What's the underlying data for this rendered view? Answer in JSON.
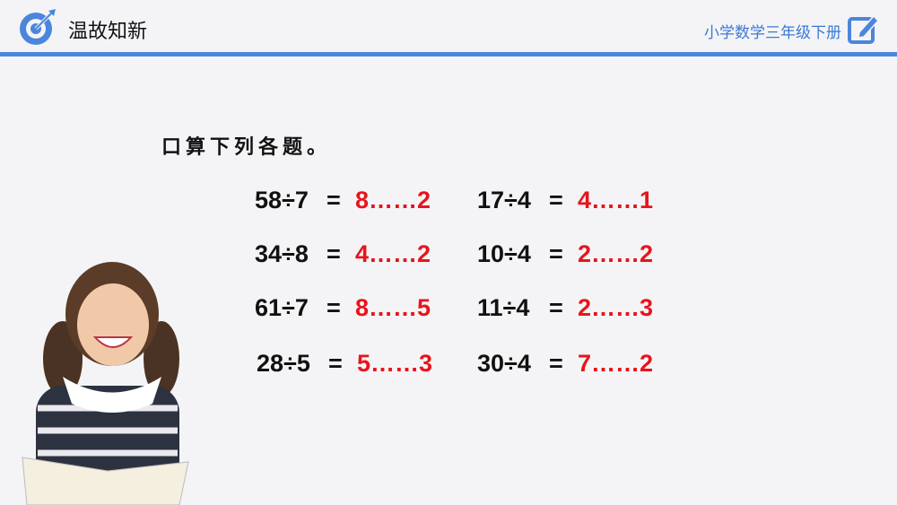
{
  "header": {
    "title": "温故知新",
    "subject": "小学数学三年级下册",
    "logo_icon": "target-icon",
    "edit_icon": "edit-icon",
    "accent": "#4a86dc"
  },
  "instruction": "口算下列各题。",
  "problems": [
    {
      "expr": "58÷7",
      "eq": "=",
      "answer": "8……2"
    },
    {
      "expr": "34÷8",
      "eq": "=",
      "answer": "4……2"
    },
    {
      "expr": "61÷7",
      "eq": "=",
      "answer": "8……5"
    },
    {
      "expr": "28÷5",
      "eq": "=",
      "answer": "5……3"
    },
    {
      "expr": "17÷4",
      "eq": "=",
      "answer": "4……1"
    },
    {
      "expr": "10÷4",
      "eq": "=",
      "answer": "2……2"
    },
    {
      "expr": "11÷4",
      "eq": "=",
      "answer": "2……3"
    },
    {
      "expr": "30÷4",
      "eq": "=",
      "answer": "7……2"
    }
  ],
  "answer_color": "#e8141b"
}
